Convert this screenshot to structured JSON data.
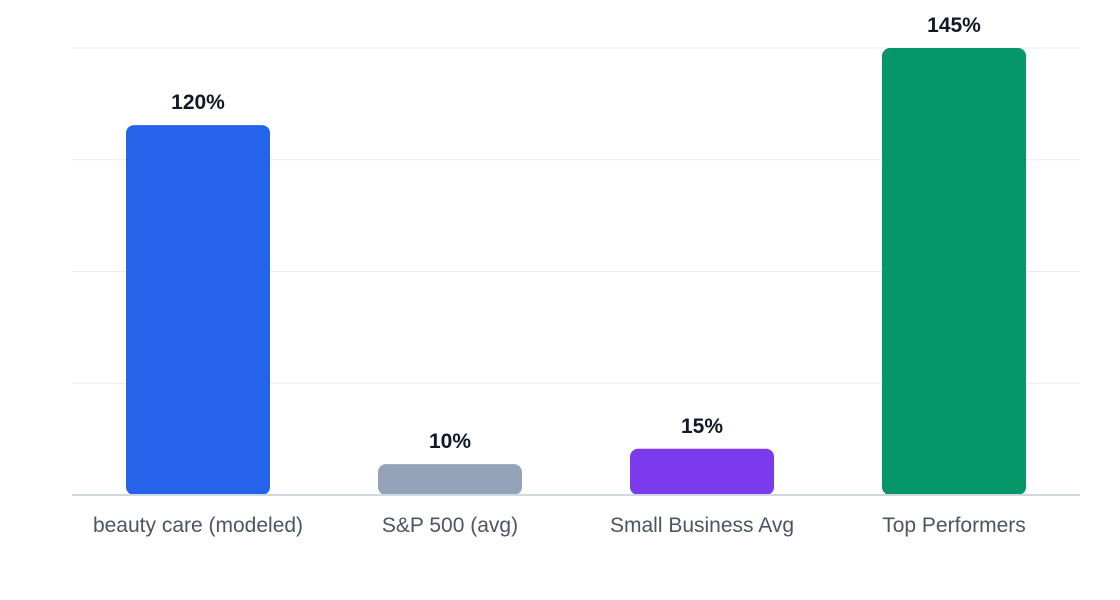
{
  "chart_data": {
    "type": "bar",
    "categories": [
      "beauty care (modeled)",
      "S&P 500 (avg)",
      "Small Business Avg",
      "Top Performers"
    ],
    "values": [
      120,
      10,
      15,
      145
    ],
    "value_labels": [
      "120%",
      "10%",
      "15%",
      "145%"
    ],
    "colors": [
      "#2563eb",
      "#94a3b8",
      "#7c3aed",
      "#059669"
    ],
    "title": "",
    "xlabel": "",
    "ylabel": "",
    "ylim": [
      0,
      145
    ],
    "grid": true,
    "legend": "none"
  }
}
